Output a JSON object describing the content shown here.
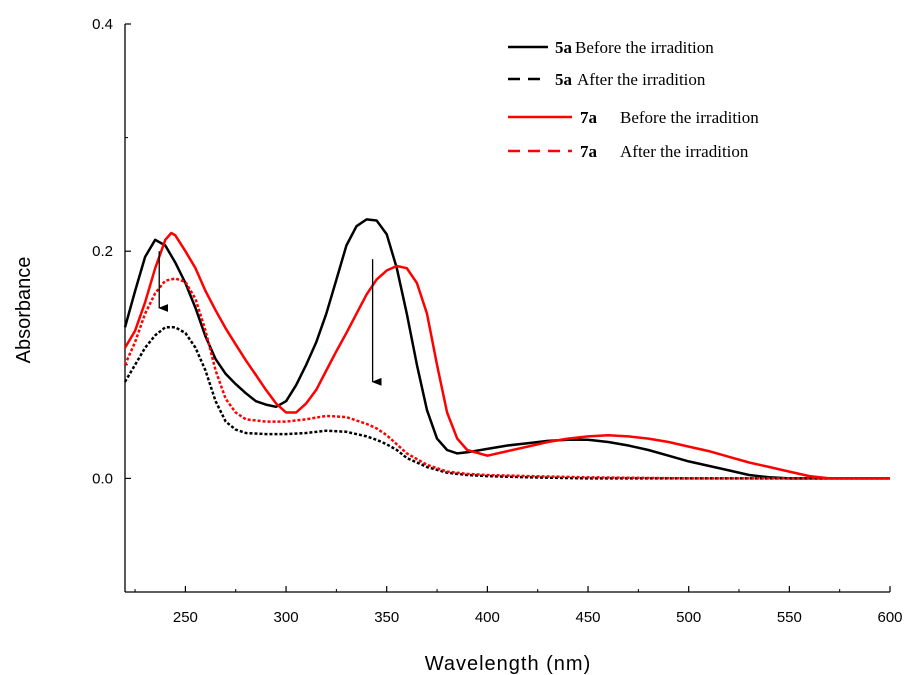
{
  "chart_data": {
    "type": "line",
    "xlabel": "Wavelength (nm)",
    "ylabel": "Absorbance",
    "xlim": [
      220,
      600
    ],
    "ylim": [
      -0.1,
      0.4
    ],
    "x_ticks": [
      "250",
      "300",
      "350",
      "400",
      "450",
      "500",
      "550",
      "600"
    ],
    "y_ticks": [
      "0.0",
      "0.2",
      "0.4"
    ],
    "grid": false,
    "legend_position": "top-right",
    "series": [
      {
        "compound": "5a",
        "name": "Before the irradition",
        "color": "#000000",
        "dash": "solid",
        "x": [
          220,
          225,
          230,
          235,
          240,
          245,
          250,
          255,
          260,
          265,
          270,
          275,
          280,
          285,
          290,
          295,
          300,
          305,
          310,
          315,
          320,
          325,
          330,
          335,
          340,
          345,
          350,
          355,
          360,
          365,
          370,
          375,
          380,
          385,
          390,
          400,
          410,
          420,
          430,
          440,
          450,
          460,
          470,
          480,
          490,
          500,
          510,
          520,
          530,
          540,
          550,
          560,
          570,
          580,
          590,
          600
        ],
        "y": [
          0.133,
          0.165,
          0.195,
          0.21,
          0.205,
          0.19,
          0.172,
          0.15,
          0.125,
          0.105,
          0.092,
          0.083,
          0.075,
          0.068,
          0.065,
          0.063,
          0.068,
          0.082,
          0.1,
          0.12,
          0.145,
          0.175,
          0.205,
          0.222,
          0.228,
          0.227,
          0.215,
          0.185,
          0.145,
          0.1,
          0.06,
          0.035,
          0.025,
          0.022,
          0.023,
          0.026,
          0.029,
          0.031,
          0.033,
          0.034,
          0.034,
          0.032,
          0.029,
          0.025,
          0.02,
          0.015,
          0.011,
          0.007,
          0.003,
          0.001,
          0,
          0,
          0,
          0,
          0,
          0
        ]
      },
      {
        "compound": "5a",
        "name": "After the irradition",
        "color": "#000000",
        "dash": "dashed",
        "x": [
          220,
          225,
          230,
          235,
          240,
          245,
          250,
          255,
          260,
          265,
          270,
          275,
          280,
          290,
          300,
          310,
          320,
          330,
          340,
          345,
          350,
          355,
          360,
          370,
          380,
          390,
          400,
          420,
          450,
          500,
          550,
          600
        ],
        "y": [
          0.085,
          0.1,
          0.115,
          0.126,
          0.133,
          0.133,
          0.128,
          0.115,
          0.095,
          0.068,
          0.05,
          0.043,
          0.04,
          0.039,
          0.039,
          0.04,
          0.042,
          0.041,
          0.037,
          0.034,
          0.03,
          0.025,
          0.018,
          0.01,
          0.005,
          0.003,
          0.002,
          0.001,
          0.0,
          0.0,
          0.0,
          0.0
        ]
      },
      {
        "compound": "7a",
        "name": "Before the irradition",
        "color": "#ff0000",
        "dash": "solid",
        "x": [
          220,
          225,
          230,
          235,
          240,
          243,
          245,
          250,
          255,
          260,
          265,
          270,
          275,
          280,
          285,
          290,
          295,
          300,
          305,
          310,
          315,
          320,
          325,
          330,
          335,
          340,
          345,
          350,
          355,
          360,
          365,
          370,
          375,
          380,
          385,
          390,
          400,
          410,
          420,
          430,
          440,
          450,
          460,
          470,
          480,
          490,
          500,
          510,
          520,
          530,
          540,
          550,
          560,
          570,
          580,
          590,
          600
        ],
        "y": [
          0.115,
          0.13,
          0.155,
          0.185,
          0.21,
          0.216,
          0.214,
          0.2,
          0.185,
          0.165,
          0.148,
          0.132,
          0.118,
          0.104,
          0.091,
          0.078,
          0.066,
          0.058,
          0.058,
          0.066,
          0.078,
          0.095,
          0.112,
          0.128,
          0.145,
          0.162,
          0.175,
          0.183,
          0.187,
          0.185,
          0.172,
          0.145,
          0.1,
          0.058,
          0.035,
          0.025,
          0.02,
          0.024,
          0.028,
          0.032,
          0.035,
          0.037,
          0.038,
          0.037,
          0.035,
          0.032,
          0.028,
          0.024,
          0.019,
          0.014,
          0.01,
          0.006,
          0.002,
          0,
          0,
          0,
          0
        ]
      },
      {
        "compound": "7a",
        "name": "After the irradition",
        "color": "#ff0000",
        "dash": "dashed",
        "x": [
          220,
          225,
          230,
          235,
          240,
          245,
          250,
          255,
          260,
          265,
          270,
          275,
          280,
          290,
          300,
          310,
          320,
          330,
          340,
          345,
          350,
          355,
          360,
          370,
          380,
          390,
          400,
          420,
          450,
          500,
          550,
          600
        ],
        "y": [
          0.1,
          0.12,
          0.145,
          0.163,
          0.174,
          0.176,
          0.173,
          0.158,
          0.13,
          0.095,
          0.07,
          0.058,
          0.052,
          0.05,
          0.05,
          0.052,
          0.055,
          0.054,
          0.048,
          0.044,
          0.038,
          0.03,
          0.022,
          0.012,
          0.006,
          0.004,
          0.003,
          0.002,
          0.001,
          0.0,
          0.0,
          0.0
        ]
      }
    ],
    "annotations": [
      {
        "type": "arrow",
        "x": 237,
        "y_from": 0.2,
        "y_to": 0.15
      },
      {
        "type": "arrow",
        "x": 343,
        "y_from": 0.193,
        "y_to": 0.085
      }
    ]
  }
}
